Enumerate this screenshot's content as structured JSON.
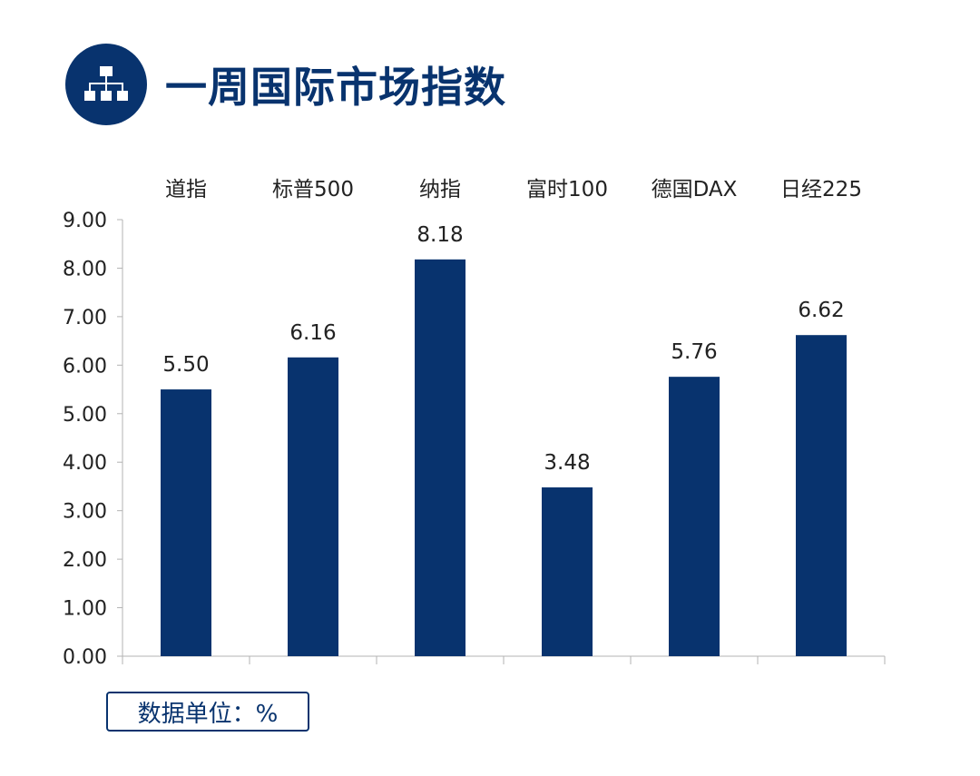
{
  "header": {
    "title": "一周国际市场指数",
    "icon": "org-chart-icon",
    "accent_color": "#08336e"
  },
  "chart_data": {
    "type": "bar",
    "categories": [
      "道指",
      "标普500",
      "纳指",
      "富时100",
      "德国DAX",
      "日经225"
    ],
    "values": [
      5.5,
      6.16,
      8.18,
      3.48,
      5.76,
      6.62
    ],
    "data_labels": [
      "5.50",
      "6.16",
      "8.18",
      "3.48",
      "5.76",
      "6.62"
    ],
    "y_ticks": [
      "0.00",
      "1.00",
      "2.00",
      "3.00",
      "4.00",
      "5.00",
      "6.00",
      "7.00",
      "8.00",
      "9.00"
    ],
    "ylim": [
      0,
      9
    ],
    "xlabel": "",
    "ylabel": "",
    "category_labels_position": "top",
    "grid": false,
    "bar_color": "#08336e"
  },
  "footer": {
    "unit_label": "数据单位：%"
  }
}
